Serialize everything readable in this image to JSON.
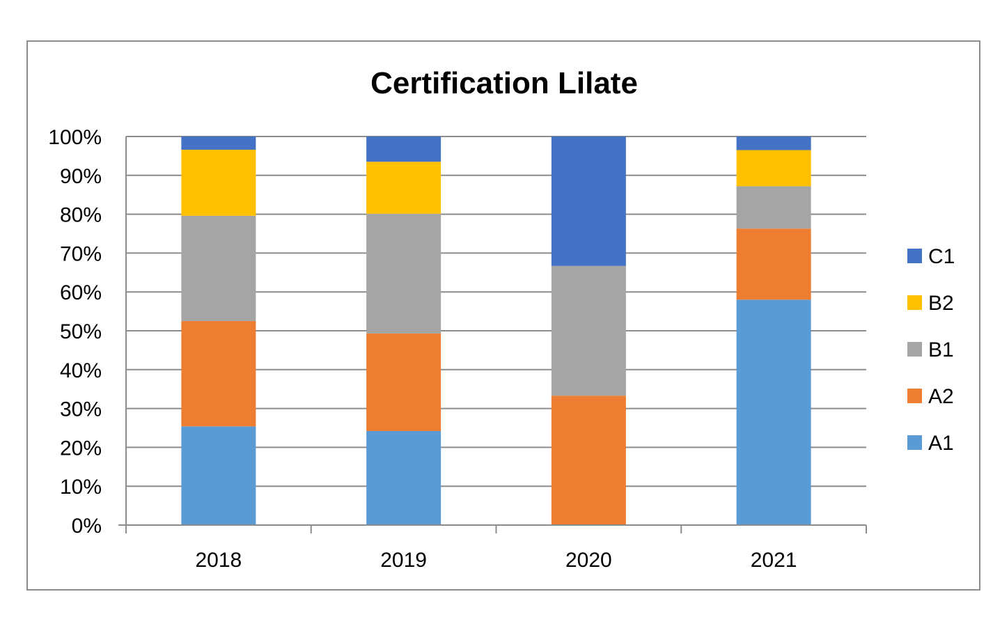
{
  "chart_data": {
    "type": "bar",
    "stacked": "percent",
    "title": "Certification Lilate",
    "xlabel": "",
    "ylabel": "",
    "categories": [
      "2018",
      "2019",
      "2020",
      "2021"
    ],
    "ylim": [
      0,
      100
    ],
    "y_ticks": [
      "0%",
      "10%",
      "20%",
      "30%",
      "40%",
      "50%",
      "60%",
      "70%",
      "80%",
      "90%",
      "100%"
    ],
    "grid": true,
    "legend_position": "right",
    "series": [
      {
        "name": "A1",
        "color": "#5B9BD5",
        "values": [
          25.4,
          24.2,
          0,
          58.0
        ]
      },
      {
        "name": "A2",
        "color": "#ED7D31",
        "values": [
          27.1,
          25.1,
          33.3,
          18.3
        ]
      },
      {
        "name": "B1",
        "color": "#A5A5A5",
        "values": [
          27.1,
          30.8,
          33.4,
          10.9
        ]
      },
      {
        "name": "B2",
        "color": "#FFC000",
        "values": [
          17.0,
          13.4,
          0,
          9.3
        ]
      },
      {
        "name": "C1",
        "color": "#4472C4",
        "values": [
          3.4,
          6.5,
          33.3,
          3.5
        ]
      }
    ],
    "legend_order": [
      "C1",
      "B2",
      "B1",
      "A2",
      "A1"
    ]
  }
}
